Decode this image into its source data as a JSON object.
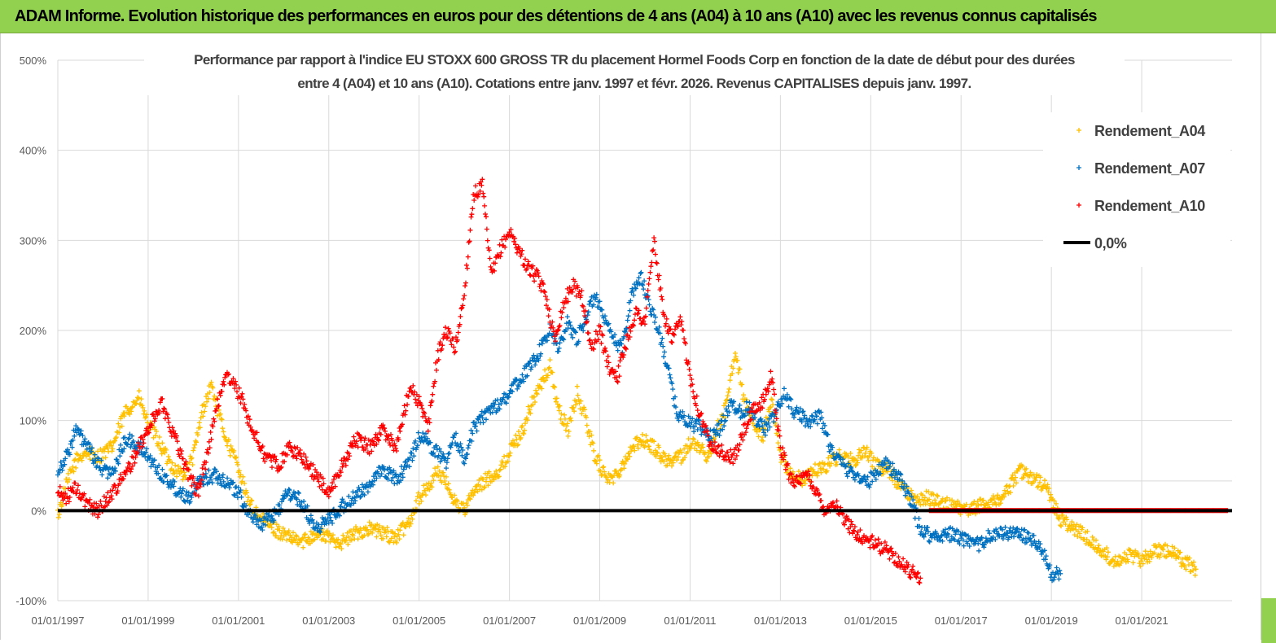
{
  "header": {
    "title": "ADAM Informe. Evolution historique des performances en euros pour des détentions de 4 ans (A04) à 10 ans (A10) avec les revenus connus capitalisés"
  },
  "chart_data": {
    "type": "scatter",
    "subtitle_line1": "Performance par rapport à l'indice EU STOXX 600 GROSS TR  du placement Hormel Foods Corp en fonction de la date de début pour des durées",
    "subtitle_line2": "entre 4 (A04) et 10 ans (A10).  Cotations entre janv. 1997 et févr. 2026. Revenus  CAPITALISES depuis janv. 1997.",
    "ylim": [
      -100,
      500
    ],
    "yticks": [
      -100,
      0,
      100,
      200,
      300,
      400,
      500
    ],
    "ytick_labels": [
      "-100%",
      "0%",
      "100%",
      "200%",
      "300%",
      "400%",
      "500%"
    ],
    "xlim": [
      1997.0,
      2023.0
    ],
    "xtick_labels": [
      "01/01/1997",
      "01/01/1999",
      "01/01/2001",
      "01/01/2003",
      "01/01/2005",
      "01/01/2007",
      "01/01/2009",
      "01/01/2011",
      "01/01/2013",
      "01/01/2015",
      "01/01/2017",
      "01/01/2019",
      "01/01/2021"
    ],
    "xtick_years": [
      1997,
      1999,
      2001,
      2003,
      2005,
      2007,
      2009,
      2011,
      2013,
      2015,
      2017,
      2019,
      2021
    ],
    "legend": {
      "position": "top-right",
      "entries": [
        {
          "label": "Rendement_A04",
          "marker": "+",
          "color": "#ffc000"
        },
        {
          "label": "Rendement_A07",
          "marker": "+",
          "color": "#0070c0"
        },
        {
          "label": "Rendement_A10",
          "marker": "+",
          "color": "#ff0000"
        },
        {
          "label": "0,0%",
          "marker": "line",
          "color": "#000000"
        }
      ]
    },
    "series": [
      {
        "name": "Rendement_A04",
        "color": "#ffc000",
        "x": [
          1997.0,
          1997.2,
          1997.4,
          1997.6,
          1997.9,
          1998.2,
          1998.5,
          1998.8,
          1999.0,
          1999.2,
          1999.4,
          1999.6,
          1999.8,
          2000.0,
          2000.2,
          2000.4,
          2000.6,
          2000.8,
          2001.0,
          2001.2,
          2001.5,
          2001.8,
          2002.1,
          2002.4,
          2002.7,
          2003.0,
          2003.3,
          2003.6,
          2003.9,
          2004.2,
          2004.5,
          2004.8,
          2005.0,
          2005.2,
          2005.4,
          2005.6,
          2005.8,
          2006.0,
          2006.2,
          2006.5,
          2006.8,
          2007.0,
          2007.3,
          2007.5,
          2007.7,
          2007.9,
          2008.1,
          2008.3,
          2008.5,
          2008.7,
          2008.9,
          2009.1,
          2009.3,
          2009.6,
          2009.9,
          2010.2,
          2010.5,
          2010.8,
          2011.0,
          2011.2,
          2011.4,
          2011.6,
          2011.8,
          2012.0,
          2012.2,
          2012.4,
          2012.6,
          2012.8,
          2013.0,
          2013.2,
          2013.5,
          2013.8,
          2014.0,
          2014.3,
          2014.6,
          2014.9,
          2015.1,
          2015.4,
          2015.6,
          2015.8,
          2016.0,
          2016.2,
          2016.5,
          2016.8,
          2017.1,
          2017.4,
          2017.7,
          2018.0,
          2018.3,
          2018.6,
          2018.9,
          2019.2,
          2019.5,
          2019.8,
          2020.1,
          2020.4,
          2020.7,
          2021.0,
          2021.3,
          2021.6,
          2021.9,
          2022.2
        ],
        "y": [
          -5,
          30,
          55,
          65,
          60,
          70,
          110,
          125,
          95,
          80,
          60,
          45,
          40,
          60,
          110,
          140,
          100,
          70,
          50,
          10,
          -10,
          -20,
          -30,
          -35,
          -25,
          -30,
          -35,
          -25,
          -20,
          -25,
          -30,
          -10,
          15,
          25,
          45,
          30,
          10,
          0,
          20,
          35,
          45,
          65,
          90,
          120,
          140,
          160,
          110,
          90,
          130,
          100,
          60,
          40,
          35,
          60,
          80,
          70,
          55,
          60,
          75,
          70,
          60,
          90,
          115,
          180,
          120,
          100,
          80,
          120,
          60,
          40,
          35,
          45,
          50,
          60,
          55,
          65,
          50,
          45,
          30,
          20,
          10,
          15,
          10,
          5,
          0,
          5,
          10,
          20,
          45,
          35,
          25,
          -10,
          -20,
          -30,
          -45,
          -55,
          -50,
          -55,
          -45,
          -45,
          -55,
          -65
        ]
      },
      {
        "name": "Rendement_A07",
        "color": "#0070c0",
        "x": [
          1997.0,
          1997.2,
          1997.4,
          1997.6,
          1997.9,
          1998.2,
          1998.5,
          1998.8,
          1999.0,
          1999.3,
          1999.6,
          1999.9,
          2000.2,
          2000.5,
          2000.8,
          2001.0,
          2001.2,
          2001.5,
          2001.8,
          2002.1,
          2002.4,
          2002.7,
          2003.0,
          2003.3,
          2003.6,
          2003.9,
          2004.2,
          2004.5,
          2004.8,
          2005.0,
          2005.2,
          2005.4,
          2005.6,
          2005.8,
          2006.0,
          2006.2,
          2006.5,
          2006.8,
          2007.0,
          2007.3,
          2007.6,
          2007.9,
          2008.1,
          2008.3,
          2008.5,
          2008.7,
          2008.9,
          2009.1,
          2009.3,
          2009.5,
          2009.7,
          2009.9,
          2010.1,
          2010.3,
          2010.5,
          2010.7,
          2010.9,
          2011.1,
          2011.3,
          2011.5,
          2011.7,
          2011.9,
          2012.1,
          2012.3,
          2012.5,
          2012.7,
          2012.9,
          2013.1,
          2013.3,
          2013.6,
          2013.9,
          2014.1,
          2014.3,
          2014.5,
          2014.7,
          2014.9,
          2015.1,
          2015.3,
          2015.5,
          2015.7,
          2015.9,
          2016.1,
          2016.4,
          2016.7,
          2017.0,
          2017.3,
          2017.6,
          2017.9,
          2018.2,
          2018.5,
          2018.8,
          2019.0,
          2019.2
        ],
        "y": [
          45,
          60,
          90,
          75,
          50,
          40,
          80,
          70,
          60,
          40,
          25,
          15,
          35,
          40,
          30,
          20,
          0,
          -15,
          -5,
          20,
          10,
          -20,
          -10,
          5,
          15,
          30,
          45,
          35,
          55,
          85,
          75,
          65,
          55,
          80,
          60,
          90,
          110,
          120,
          130,
          150,
          170,
          200,
          180,
          210,
          190,
          215,
          240,
          210,
          190,
          180,
          240,
          260,
          230,
          200,
          160,
          110,
          100,
          95,
          90,
          80,
          95,
          120,
          110,
          115,
          100,
          90,
          110,
          130,
          110,
          100,
          105,
          70,
          55,
          45,
          40,
          30,
          40,
          55,
          45,
          30,
          10,
          -20,
          -30,
          -25,
          -30,
          -40,
          -30,
          -25,
          -25,
          -30,
          -45,
          -70,
          -70
        ]
      },
      {
        "name": "Rendement_A10",
        "color": "#ff0000",
        "x": [
          1997.0,
          1997.2,
          1997.4,
          1997.6,
          1997.9,
          1998.2,
          1998.5,
          1998.8,
          1999.0,
          1999.3,
          1999.6,
          1999.9,
          2000.1,
          2000.3,
          2000.5,
          2000.7,
          2000.9,
          2001.1,
          2001.3,
          2001.6,
          2001.9,
          2002.1,
          2002.4,
          2002.7,
          2003.0,
          2003.3,
          2003.6,
          2003.9,
          2004.2,
          2004.5,
          2004.8,
          2005.0,
          2005.2,
          2005.4,
          2005.6,
          2005.8,
          2006.0,
          2006.2,
          2006.4,
          2006.6,
          2006.8,
          2007.0,
          2007.2,
          2007.4,
          2007.6,
          2007.8,
          2008.0,
          2008.2,
          2008.4,
          2008.6,
          2008.8,
          2009.0,
          2009.2,
          2009.4,
          2009.6,
          2009.8,
          2010.0,
          2010.2,
          2010.4,
          2010.6,
          2010.8,
          2011.0,
          2011.2,
          2011.4,
          2011.6,
          2011.8,
          2012.0,
          2012.2,
          2012.4,
          2012.6,
          2012.8,
          2013.0,
          2013.2,
          2013.4,
          2013.6,
          2013.8,
          2014.0,
          2014.2,
          2014.4,
          2014.6,
          2014.8,
          2015.0,
          2015.2,
          2015.4,
          2015.6,
          2015.8,
          2016.0,
          2016.1
        ],
        "y": [
          20,
          15,
          25,
          10,
          0,
          20,
          40,
          70,
          90,
          120,
          80,
          40,
          20,
          60,
          110,
          150,
          140,
          120,
          90,
          60,
          50,
          70,
          60,
          40,
          20,
          50,
          80,
          70,
          90,
          70,
          140,
          120,
          90,
          170,
          200,
          180,
          240,
          350,
          360,
          260,
          290,
          310,
          290,
          270,
          260,
          240,
          190,
          230,
          250,
          240,
          180,
          200,
          160,
          150,
          190,
          220,
          210,
          300,
          220,
          190,
          210,
          150,
          110,
          80,
          70,
          60,
          60,
          90,
          110,
          120,
          150,
          70,
          40,
          30,
          40,
          20,
          0,
          10,
          -10,
          -20,
          -30,
          -35,
          -40,
          -45,
          -55,
          -65,
          -70,
          -75
        ]
      },
      {
        "name": "Rendement_A10",
        "color": "#ff0000",
        "x": [
          2016.3,
          2022.9
        ],
        "y": [
          0,
          0
        ]
      }
    ]
  }
}
